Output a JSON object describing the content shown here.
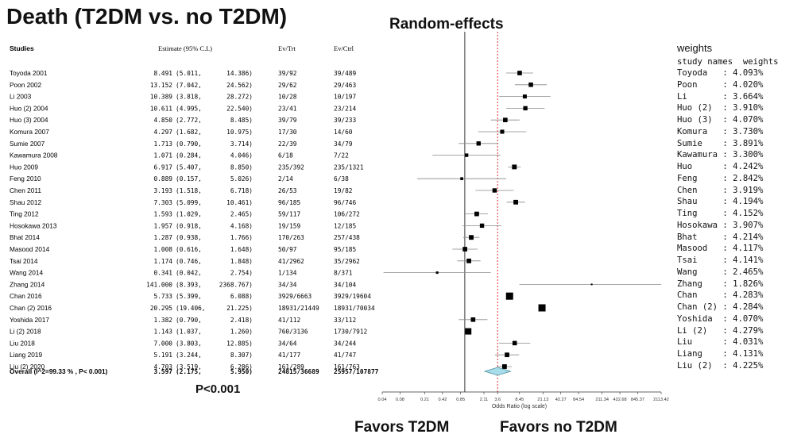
{
  "title": "Death (T2DM vs. no T2DM)",
  "subtitle": "Random-effects",
  "p_value_text": "P<0.001",
  "favors_left": "Favors T2DM",
  "favors_right": "Favors no T2DM",
  "table_headers": {
    "studies": "Studies",
    "estimate": "Estimate (95% C.I.)",
    "ev_trt": "Ev/Trt",
    "ev_ctrl": "Ev/Ctrl"
  },
  "weights_panel": {
    "title": "weights",
    "header": "study names  weights"
  },
  "chart_data": {
    "type": "forest",
    "xlabel": "Odds Ratio (log scale)",
    "x_scale": "log",
    "xlim": [
      0.04,
      2113.42
    ],
    "reference_line": 1,
    "pooled_reference_line": 3.597,
    "x_ticks": [
      "0.04",
      "0.08",
      "0.21",
      "0.42",
      "0.85",
      "2.11",
      "3.6",
      "8.45",
      "21.13",
      "42.27",
      "84.54",
      "211.34",
      "422.68",
      "845.37",
      "2113.42"
    ],
    "x_tick_values": [
      0.04,
      0.08,
      0.21,
      0.42,
      0.85,
      2.11,
      3.6,
      8.45,
      21.13,
      42.27,
      84.54,
      211.34,
      422.68,
      845.37,
      2113.42
    ],
    "studies": [
      {
        "name": "Toyoda 2001",
        "est": "8.491",
        "lo": "5.011",
        "hi": "14.386",
        "ev_trt": "39/92",
        "ev_ctrl": "39/489",
        "w_name": "Toyoda",
        "weight": "4.093%"
      },
      {
        "name": "Poon 2002",
        "est": "13.152",
        "lo": "7.042",
        "hi": "24.562",
        "ev_trt": "29/62",
        "ev_ctrl": "29/463",
        "w_name": "Poon",
        "weight": "4.020%"
      },
      {
        "name": "Li 2003",
        "est": "10.389",
        "lo": "3.818",
        "hi": "28.272",
        "ev_trt": "10/28",
        "ev_ctrl": "10/197",
        "w_name": "Li",
        "weight": "3.664%"
      },
      {
        "name": "Huo (2) 2004",
        "est": "10.611",
        "lo": "4.995",
        "hi": "22.540",
        "ev_trt": "23/41",
        "ev_ctrl": "23/214",
        "w_name": "Huo (2)",
        "weight": "3.910%"
      },
      {
        "name": "Huo (3) 2004",
        "est": "4.850",
        "lo": "2.772",
        "hi": "8.485",
        "ev_trt": "39/79",
        "ev_ctrl": "39/233",
        "w_name": "Huo (3)",
        "weight": "4.070%"
      },
      {
        "name": "Komura 2007",
        "est": "4.297",
        "lo": "1.682",
        "hi": "10.975",
        "ev_trt": "17/30",
        "ev_ctrl": "14/60",
        "w_name": "Komura",
        "weight": "3.730%"
      },
      {
        "name": "Sumie 2007",
        "est": "1.713",
        "lo": "0.790",
        "hi": "3.714",
        "ev_trt": "22/39",
        "ev_ctrl": "34/79",
        "w_name": "Sumie",
        "weight": "3.891%"
      },
      {
        "name": "Kawamura 2008",
        "est": "1.071",
        "lo": "0.284",
        "hi": "4.046",
        "ev_trt": "6/18",
        "ev_ctrl": "7/22",
        "w_name": "Kawamura",
        "weight": "3.300%"
      },
      {
        "name": "Huo 2009",
        "est": "6.917",
        "lo": "5.407",
        "hi": "8.850",
        "ev_trt": "235/392",
        "ev_ctrl": "235/1321",
        "w_name": "Huo",
        "weight": "4.242%"
      },
      {
        "name": "Feng  2010",
        "est": "0.889",
        "lo": "0.157",
        "hi": "5.026",
        "ev_trt": "2/14",
        "ev_ctrl": "6/38",
        "w_name": "Feng",
        "weight": "2.842%"
      },
      {
        "name": "Chen 2011",
        "est": "3.193",
        "lo": "1.518",
        "hi": "6.718",
        "ev_trt": "26/53",
        "ev_ctrl": "19/82",
        "w_name": "Chen",
        "weight": "3.919%"
      },
      {
        "name": "Shau 2012",
        "est": "7.303",
        "lo": "5.099",
        "hi": "10.461",
        "ev_trt": "96/185",
        "ev_ctrl": "96/746",
        "w_name": "Shau",
        "weight": "4.194%"
      },
      {
        "name": "Ting 2012",
        "est": "1.593",
        "lo": "1.029",
        "hi": "2.465",
        "ev_trt": "59/117",
        "ev_ctrl": "106/272",
        "w_name": "Ting",
        "weight": "4.152%"
      },
      {
        "name": "Hosokawa 2013",
        "est": "1.957",
        "lo": "0.918",
        "hi": "4.168",
        "ev_trt": "19/159",
        "ev_ctrl": "12/185",
        "w_name": "Hosokawa",
        "weight": "3.907%"
      },
      {
        "name": "Bhat 2014",
        "est": "1.287",
        "lo": "0.938",
        "hi": "1.766",
        "ev_trt": "170/263",
        "ev_ctrl": "257/438",
        "w_name": "Bhat",
        "weight": "4.214%"
      },
      {
        "name": "Masood 2014",
        "est": "1.008",
        "lo": "0.616",
        "hi": "1.648",
        "ev_trt": "50/97",
        "ev_ctrl": "95/185",
        "w_name": "Masood",
        "weight": "4.117%"
      },
      {
        "name": "Tsai 2014",
        "est": "1.174",
        "lo": "0.746",
        "hi": "1.848",
        "ev_trt": "41/2962",
        "ev_ctrl": "35/2962",
        "w_name": "Tsai",
        "weight": "4.141%"
      },
      {
        "name": "Wang 2014",
        "est": "0.341",
        "lo": "0.042",
        "hi": "2.754",
        "ev_trt": "1/134",
        "ev_ctrl": "8/371",
        "w_name": "Wang",
        "weight": "2.465%"
      },
      {
        "name": "Zhang 2014",
        "est": "141.000",
        "lo": "8.393",
        "hi": "2368.767",
        "ev_trt": "34/34",
        "ev_ctrl": "34/104",
        "w_name": "Zhang",
        "weight": "1.826%"
      },
      {
        "name": "Chan 2016",
        "est": "5.733",
        "lo": "5.399",
        "hi": "6.088",
        "ev_trt": "3929/6663",
        "ev_ctrl": "3929/19604",
        "w_name": "Chan",
        "weight": "4.283%"
      },
      {
        "name": "Chan (2) 2016",
        "est": "20.295",
        "lo": "19.406",
        "hi": "21.225",
        "ev_trt": "18931/21449",
        "ev_ctrl": "18931/70034",
        "w_name": "Chan (2)",
        "weight": "4.284%"
      },
      {
        "name": "Yoshida 2017",
        "est": "1.382",
        "lo": "0.790",
        "hi": "2.418",
        "ev_trt": "41/112",
        "ev_ctrl": "33/112",
        "w_name": "Yoshida",
        "weight": "4.070%"
      },
      {
        "name": "Li (2) 2018",
        "est": "1.143",
        "lo": "1.037",
        "hi": "1.260",
        "ev_trt": "760/3136",
        "ev_ctrl": "1730/7912",
        "w_name": "Li (2)",
        "weight": "4.279%"
      },
      {
        "name": "Liu 2018",
        "est": "7.000",
        "lo": "3.803",
        "hi": "12.885",
        "ev_trt": "34/64",
        "ev_ctrl": "34/244",
        "w_name": "Liu",
        "weight": "4.031%"
      },
      {
        "name": "Liang 2019",
        "est": "5.191",
        "lo": "3.244",
        "hi": "8.307",
        "ev_trt": "41/177",
        "ev_ctrl": "41/747",
        "w_name": "Liang",
        "weight": "4.131%"
      },
      {
        "name": "Liu (2) 2020",
        "est": "4.703",
        "lo": "3.519",
        "hi": "6.286",
        "ev_trt": "161/289",
        "ev_ctrl": "161/763",
        "w_name": "Liu (2)",
        "weight": "4.225%"
      }
    ],
    "overall": {
      "name": "Overall (I^2=99.33 % , P< 0.001)",
      "est": "3.597",
      "lo": "2.175",
      "hi": "5.950",
      "ev_trt": "24815/36689",
      "ev_ctrl": "25957/107877"
    }
  }
}
